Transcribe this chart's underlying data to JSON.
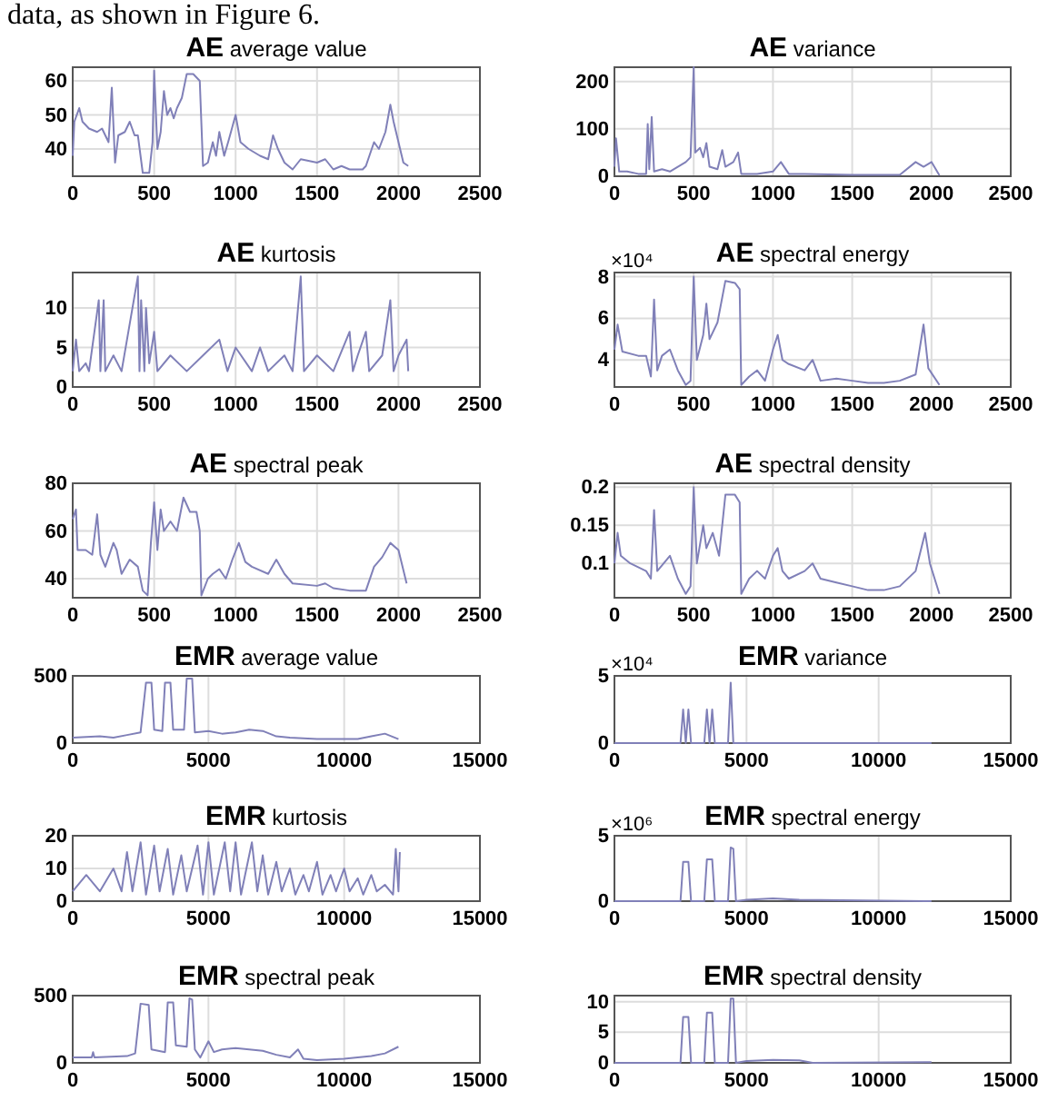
{
  "chart_data": [
    {
      "type": "line",
      "title": "AE average value",
      "annotations": [
        "data, as shown in Figure 6."
      ],
      "xlim": [
        0,
        2500
      ],
      "xticks": [
        0,
        500,
        1000,
        1500,
        2000,
        2500
      ],
      "ylim": [
        32,
        64
      ],
      "yticks": [
        40,
        50,
        60
      ],
      "grid": true,
      "color": "#8080b8",
      "x": [
        0,
        10,
        40,
        60,
        100,
        150,
        180,
        200,
        220,
        240,
        260,
        280,
        320,
        350,
        380,
        400,
        430,
        470,
        490,
        500,
        520,
        540,
        560,
        580,
        600,
        620,
        640,
        670,
        700,
        740,
        780,
        800,
        830,
        860,
        880,
        900,
        930,
        960,
        1000,
        1030,
        1080,
        1150,
        1200,
        1230,
        1260,
        1300,
        1350,
        1400,
        1500,
        1550,
        1600,
        1650,
        1700,
        1780,
        1800,
        1850,
        1880,
        1920,
        1950,
        1970,
        2000,
        2030,
        2060
      ],
      "values": [
        38,
        48,
        52,
        48,
        46,
        45,
        46,
        44,
        42,
        58,
        36,
        44,
        45,
        48,
        44,
        44,
        33,
        33,
        42,
        63,
        40,
        45,
        57,
        50,
        52,
        49,
        52,
        55,
        62,
        62,
        60,
        35,
        36,
        42,
        38,
        45,
        38,
        43,
        50,
        42,
        40,
        38,
        37,
        44,
        40,
        36,
        34,
        37,
        36,
        37,
        34,
        35,
        34,
        34,
        35,
        42,
        40,
        45,
        53,
        48,
        42,
        36,
        35
      ]
    },
    {
      "type": "line",
      "title": "AE variance",
      "xlim": [
        0,
        2500
      ],
      "xticks": [
        0,
        500,
        1000,
        1500,
        2000,
        2500
      ],
      "ylim": [
        0,
        230
      ],
      "yticks": [
        0,
        100,
        200
      ],
      "grid": true,
      "color": "#8080b8",
      "x": [
        0,
        10,
        30,
        80,
        150,
        200,
        210,
        220,
        235,
        250,
        300,
        350,
        400,
        450,
        480,
        500,
        510,
        540,
        560,
        580,
        600,
        650,
        680,
        700,
        750,
        780,
        800,
        900,
        1000,
        1050,
        1100,
        1200,
        1500,
        1800,
        1900,
        1950,
        2000,
        2050
      ],
      "values": [
        20,
        80,
        10,
        10,
        5,
        5,
        110,
        15,
        125,
        10,
        15,
        10,
        20,
        30,
        40,
        230,
        50,
        60,
        40,
        70,
        20,
        15,
        55,
        20,
        30,
        50,
        5,
        5,
        10,
        30,
        5,
        5,
        3,
        3,
        30,
        20,
        30,
        2
      ]
    },
    {
      "type": "line",
      "title": "AE kurtosis",
      "xlim": [
        0,
        2500
      ],
      "xticks": [
        0,
        500,
        1000,
        1500,
        2000,
        2500
      ],
      "ylim": [
        0,
        14.5
      ],
      "yticks": [
        0,
        5,
        10
      ],
      "grid": true,
      "color": "#8080b8",
      "x": [
        0,
        20,
        40,
        80,
        100,
        160,
        170,
        190,
        200,
        250,
        300,
        400,
        410,
        420,
        440,
        450,
        470,
        500,
        520,
        600,
        700,
        800,
        900,
        950,
        1000,
        1100,
        1150,
        1200,
        1300,
        1350,
        1400,
        1420,
        1500,
        1600,
        1700,
        1720,
        1750,
        1800,
        1820,
        1900,
        1950,
        1970,
        2000,
        2050,
        2060
      ],
      "values": [
        2,
        6,
        2,
        3,
        2,
        11,
        2,
        11,
        2,
        4,
        2,
        14,
        2,
        11,
        2,
        10,
        3,
        7,
        2,
        4,
        2,
        4,
        6,
        2,
        5,
        2,
        5,
        2,
        4,
        2,
        14,
        2,
        4,
        2,
        7,
        2,
        4,
        7,
        2,
        4,
        11,
        2,
        4,
        6,
        2
      ]
    },
    {
      "type": "line",
      "title": "AE spectral energy",
      "annotations": [
        "×10⁴"
      ],
      "xlim": [
        0,
        2500
      ],
      "xticks": [
        0,
        500,
        1000,
        1500,
        2000,
        2500
      ],
      "ylim": [
        2.7,
        8.2
      ],
      "yticks": [
        4,
        6,
        8
      ],
      "grid": true,
      "color": "#8080b8",
      "x": [
        0,
        20,
        50,
        150,
        200,
        230,
        250,
        270,
        300,
        350,
        400,
        450,
        480,
        500,
        520,
        560,
        580,
        600,
        650,
        700,
        760,
        790,
        800,
        850,
        900,
        950,
        1000,
        1030,
        1060,
        1100,
        1200,
        1250,
        1300,
        1400,
        1500,
        1600,
        1700,
        1800,
        1900,
        1950,
        1980,
        2050
      ],
      "values": [
        4.5,
        5.7,
        4.4,
        4.2,
        4.2,
        3.2,
        6.9,
        3.5,
        4.2,
        4.5,
        3.5,
        2.8,
        3,
        8,
        4,
        5.2,
        6.7,
        5,
        5.8,
        7.8,
        7.7,
        7.4,
        2.8,
        3.2,
        3.5,
        3,
        4.5,
        5.2,
        4,
        3.8,
        3.5,
        4,
        3,
        3.1,
        3,
        2.9,
        2.9,
        3,
        3.3,
        5.7,
        3.6,
        2.8
      ]
    },
    {
      "type": "line",
      "title": "AE spectral peak",
      "xlim": [
        0,
        2500
      ],
      "xticks": [
        0,
        500,
        1000,
        1500,
        2000,
        2500
      ],
      "ylim": [
        32,
        80
      ],
      "yticks": [
        40,
        60,
        80
      ],
      "grid": true,
      "color": "#8080b8",
      "x": [
        0,
        20,
        30,
        80,
        120,
        150,
        170,
        200,
        250,
        270,
        300,
        350,
        400,
        430,
        460,
        480,
        500,
        520,
        540,
        560,
        600,
        640,
        680,
        720,
        760,
        780,
        790,
        830,
        860,
        900,
        940,
        980,
        1020,
        1060,
        1100,
        1200,
        1250,
        1300,
        1350,
        1500,
        1550,
        1600,
        1700,
        1800,
        1850,
        1900,
        1950,
        2000,
        2050
      ],
      "values": [
        65,
        69,
        52,
        52,
        50,
        67,
        50,
        45,
        55,
        52,
        42,
        48,
        45,
        35,
        33,
        55,
        72,
        52,
        69,
        60,
        64,
        60,
        74,
        68,
        68,
        60,
        33,
        40,
        42,
        44,
        40,
        48,
        55,
        47,
        45,
        42,
        48,
        42,
        38,
        37,
        38,
        36,
        35,
        35,
        45,
        49,
        55,
        52,
        38
      ]
    },
    {
      "type": "line",
      "title": "AE spectral density",
      "xlim": [
        0,
        2500
      ],
      "xticks": [
        0,
        500,
        1000,
        1500,
        2000,
        2500
      ],
      "ylim": [
        0.055,
        0.205
      ],
      "yticks": [
        0.1,
        0.15,
        0.2
      ],
      "grid": true,
      "color": "#8080b8",
      "x": [
        0,
        20,
        40,
        100,
        200,
        230,
        250,
        270,
        350,
        400,
        450,
        480,
        500,
        520,
        560,
        580,
        620,
        660,
        700,
        760,
        790,
        800,
        850,
        900,
        950,
        1000,
        1030,
        1060,
        1100,
        1200,
        1250,
        1300,
        1400,
        1500,
        1600,
        1700,
        1800,
        1900,
        1960,
        1990,
        2050
      ],
      "values": [
        0.1,
        0.14,
        0.11,
        0.1,
        0.09,
        0.08,
        0.17,
        0.09,
        0.11,
        0.08,
        0.06,
        0.07,
        0.2,
        0.1,
        0.15,
        0.12,
        0.14,
        0.11,
        0.19,
        0.19,
        0.18,
        0.06,
        0.08,
        0.09,
        0.08,
        0.11,
        0.12,
        0.09,
        0.08,
        0.09,
        0.1,
        0.08,
        0.075,
        0.07,
        0.065,
        0.065,
        0.07,
        0.09,
        0.14,
        0.1,
        0.06
      ]
    },
    {
      "type": "line",
      "title": "EMR average value",
      "xlim": [
        0,
        15000
      ],
      "xticks": [
        0,
        5000,
        10000,
        15000
      ],
      "ylim": [
        0,
        500
      ],
      "yticks": [
        0,
        500
      ],
      "grid": true,
      "color": "#8080b8",
      "x": [
        0,
        1000,
        1500,
        2000,
        2500,
        2700,
        2900,
        3000,
        3300,
        3400,
        3600,
        3700,
        4100,
        4200,
        4400,
        4500,
        5000,
        5500,
        6000,
        6500,
        7000,
        7500,
        8000,
        9000,
        10000,
        10500,
        11000,
        11500,
        12000
      ],
      "values": [
        40,
        50,
        40,
        60,
        80,
        450,
        450,
        100,
        90,
        450,
        450,
        100,
        100,
        480,
        480,
        80,
        90,
        70,
        80,
        100,
        90,
        50,
        40,
        30,
        30,
        30,
        50,
        70,
        30
      ]
    },
    {
      "type": "line",
      "title": "EMR variance",
      "annotations": [
        "×10⁴"
      ],
      "xlim": [
        0,
        15000
      ],
      "xticks": [
        0,
        5000,
        10000,
        15000
      ],
      "ylim": [
        0,
        5
      ],
      "yticks": [
        0,
        5
      ],
      "grid": true,
      "color": "#8080b8",
      "x": [
        0,
        2500,
        2600,
        2700,
        2800,
        2900,
        3400,
        3500,
        3600,
        3700,
        3800,
        4300,
        4400,
        4500,
        5000,
        8000,
        12000
      ],
      "values": [
        0,
        0,
        2.5,
        0,
        2.5,
        0,
        0,
        2.5,
        0,
        2.5,
        0,
        0,
        4.5,
        0,
        0,
        0,
        0
      ]
    },
    {
      "type": "line",
      "title": "EMR kurtosis",
      "xlim": [
        0,
        15000
      ],
      "xticks": [
        0,
        5000,
        10000,
        15000
      ],
      "ylim": [
        0,
        20
      ],
      "yticks": [
        0,
        10,
        20
      ],
      "grid": true,
      "color": "#8080b8",
      "x": [
        0,
        500,
        1000,
        1500,
        1800,
        2000,
        2200,
        2500,
        2700,
        3000,
        3200,
        3500,
        3700,
        4000,
        4200,
        4600,
        4800,
        5000,
        5200,
        5600,
        5800,
        6000,
        6200,
        6600,
        6800,
        7000,
        7200,
        7500,
        7700,
        8000,
        8200,
        8500,
        8700,
        9000,
        9200,
        9500,
        9700,
        10000,
        10200,
        10500,
        10700,
        11000,
        11200,
        11500,
        11800,
        11900,
        12000,
        12050
      ],
      "values": [
        3,
        8,
        3,
        10,
        3,
        15,
        3,
        18,
        2,
        17,
        3,
        16,
        2,
        14,
        3,
        17,
        2,
        18,
        2,
        18,
        3,
        18,
        2,
        18,
        3,
        14,
        2,
        12,
        3,
        10,
        2,
        8,
        3,
        12,
        2,
        8,
        3,
        10,
        3,
        7,
        2,
        8,
        3,
        5,
        2,
        16,
        3,
        15
      ]
    },
    {
      "type": "line",
      "title": "EMR spectral energy",
      "annotations": [
        "×10⁶"
      ],
      "xlim": [
        0,
        15000
      ],
      "xticks": [
        0,
        5000,
        10000,
        15000
      ],
      "ylim": [
        0,
        5
      ],
      "yticks": [
        0,
        5
      ],
      "grid": true,
      "color": "#8080b8",
      "x": [
        0,
        2500,
        2600,
        2800,
        2900,
        3400,
        3500,
        3700,
        3800,
        4300,
        4400,
        4500,
        4600,
        5000,
        6000,
        7000,
        12000
      ],
      "values": [
        0,
        0,
        3,
        3,
        0,
        0,
        3.2,
        3.2,
        0,
        0,
        4.1,
        4,
        0,
        0.1,
        0.2,
        0.1,
        0
      ]
    },
    {
      "type": "line",
      "title": "EMR spectral peak",
      "xlim": [
        0,
        15000
      ],
      "xticks": [
        0,
        5000,
        10000,
        15000
      ],
      "ylim": [
        0,
        500
      ],
      "yticks": [
        0,
        500
      ],
      "grid": true,
      "color": "#8080b8",
      "x": [
        0,
        700,
        750,
        800,
        2000,
        2300,
        2500,
        2800,
        2900,
        3400,
        3500,
        3700,
        3800,
        4200,
        4300,
        4400,
        4500,
        4700,
        5000,
        5200,
        5500,
        6000,
        6500,
        7000,
        7500,
        8000,
        8300,
        8500,
        9000,
        10000,
        11000,
        11500,
        12000
      ],
      "values": [
        40,
        40,
        80,
        40,
        50,
        70,
        440,
        430,
        100,
        80,
        450,
        450,
        130,
        120,
        480,
        470,
        100,
        40,
        160,
        80,
        100,
        110,
        100,
        90,
        60,
        40,
        100,
        30,
        20,
        30,
        50,
        70,
        120
      ]
    },
    {
      "type": "line",
      "title": "EMR spectral density",
      "xlim": [
        0,
        15000
      ],
      "xticks": [
        0,
        5000,
        10000,
        15000
      ],
      "ylim": [
        0,
        11
      ],
      "yticks": [
        0,
        5,
        10
      ],
      "grid": true,
      "color": "#8080b8",
      "x": [
        0,
        2500,
        2600,
        2800,
        2900,
        3400,
        3500,
        3700,
        3800,
        4300,
        4400,
        4500,
        4600,
        5000,
        6000,
        7000,
        7500,
        12000
      ],
      "values": [
        0,
        0,
        7.5,
        7.5,
        0,
        0,
        8.2,
        8.2,
        0,
        0,
        10.5,
        10.5,
        0,
        0.3,
        0.5,
        0.4,
        0,
        0.1
      ]
    }
  ]
}
